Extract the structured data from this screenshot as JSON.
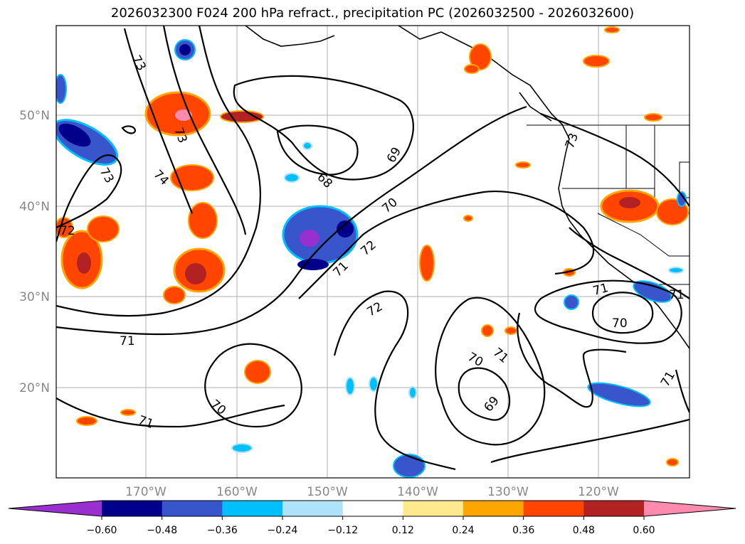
{
  "title": "2026032300 F024 200 hPa refract., precipitation PC (2026032500 - 2026032600)",
  "map": {
    "lat_labels": [
      "50°N",
      "40°N",
      "30°N",
      "20°N"
    ],
    "lon_labels": [
      "170°W",
      "160°W",
      "150°W",
      "140°W",
      "130°W",
      "120°W"
    ],
    "contour_labels": [
      "73",
      "73",
      "74",
      "73",
      "72",
      "71",
      "68",
      "69",
      "70",
      "72",
      "71",
      "72",
      "71",
      "70",
      "69",
      "71",
      "70",
      "71",
      "70",
      "71",
      "73",
      "71"
    ]
  },
  "colorbar": {
    "ticks": [
      "−0.60",
      "−0.48",
      "−0.36",
      "−0.24",
      "−0.12",
      "0.12",
      "0.24",
      "0.36",
      "0.48",
      "0.60"
    ],
    "colors": [
      "#9a2fd0",
      "#00008b",
      "#3955cc",
      "#00bfff",
      "#aee2fb",
      "#ffffff",
      "#ffe98f",
      "#ffa500",
      "#ff4500",
      "#b22222",
      "#ff8ab0",
      "#ff8ab0"
    ]
  }
}
